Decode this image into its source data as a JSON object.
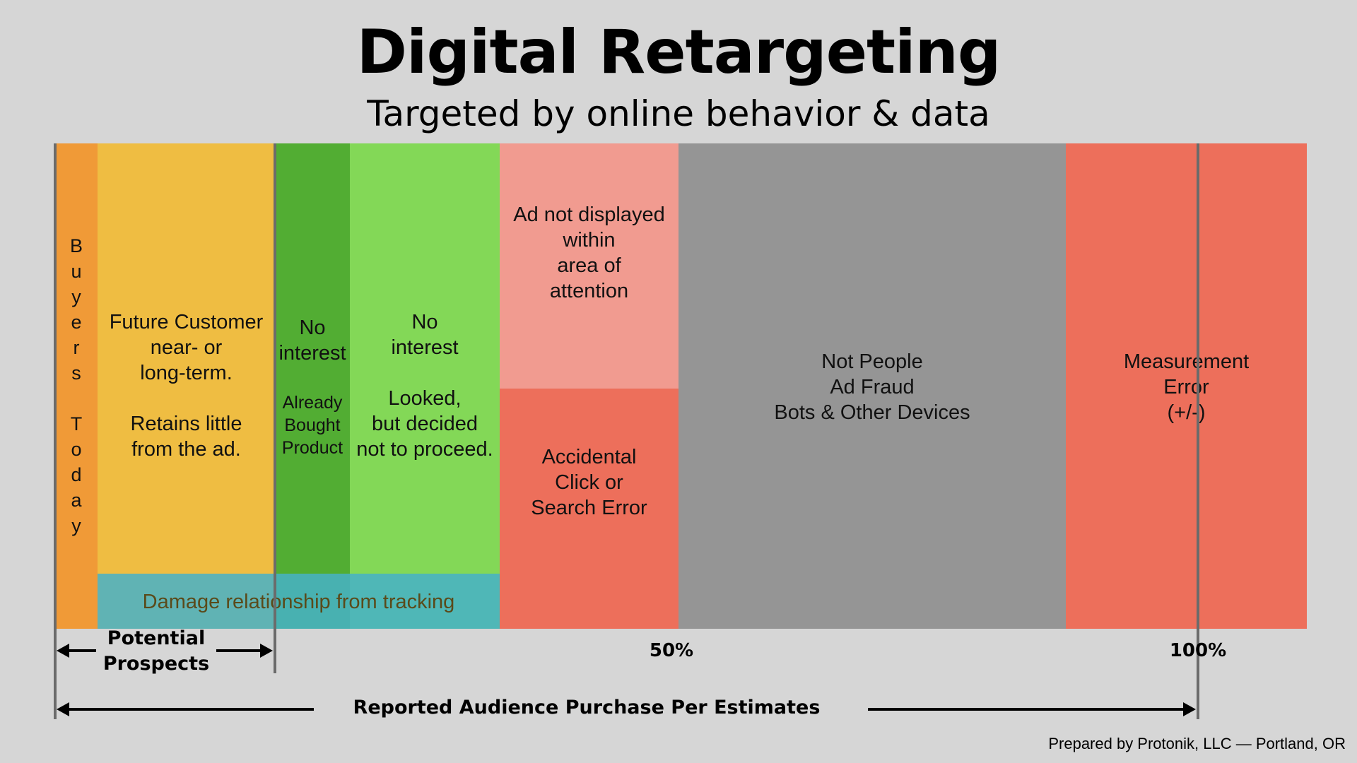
{
  "title": "Digital Retargeting",
  "subtitle": "Targeted by online behavior & data",
  "colors": {
    "background": "#d6d6d6",
    "buyers_today": "#f09a37",
    "future_customer": "#efbd42",
    "already_bought": "#52ad33",
    "no_interest": "#83d857",
    "ad_not_displayed": "#f19b90",
    "accidental_click": "#ed6f5b",
    "not_people": "#959595",
    "measurement_error": "#ed6f5b",
    "tracking_overlay": "#4db3c7"
  },
  "segments": {
    "buyers_today": "B\nu\ny\ne\nr\ns\n\nT\no\nd\na\ny",
    "future_customer": "Future Customer\nnear- or\nlong-term.\n\nRetains little\nfrom the ad.",
    "already_bought_heading": "No\ninterest",
    "already_bought_detail": "Already\nBought\nProduct",
    "no_interest": "No\ninterest\n\nLooked,\nbut decided\nnot to proceed.",
    "ad_not_displayed": "Ad not displayed\nwithin\narea of\nattention",
    "accidental_click": "Accidental\nClick or\nSearch Error",
    "not_people": "Not People\nAd Fraud\nBots & Other Devices",
    "measurement_error": "Measurement\nError\n(+/-)"
  },
  "tracking_overlay": "Damage relationship from tracking",
  "scale": {
    "fifty": "50%",
    "hundred": "100%"
  },
  "potential_prospects": "Potential\nProspects",
  "reported_audience": "Reported Audience Purchase Per Estimates",
  "credit": "Prepared by Protonik, LLC — Portland, OR"
}
